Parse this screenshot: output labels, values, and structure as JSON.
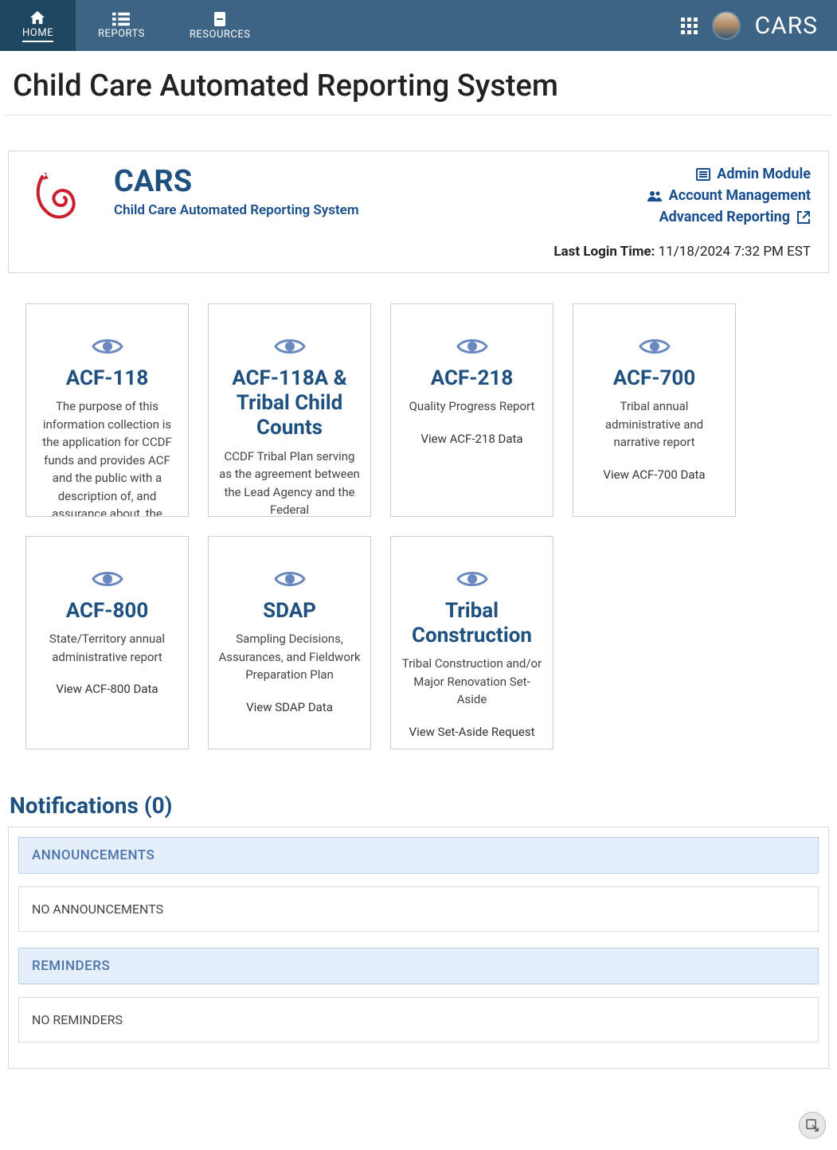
{
  "nav": {
    "items": [
      {
        "label": "HOME",
        "active": true
      },
      {
        "label": "REPORTS",
        "active": false
      },
      {
        "label": "RESOURCES",
        "active": false
      }
    ],
    "brand": "CARS"
  },
  "page_title": "Child Care Automated Reporting System",
  "header": {
    "title": "CARS",
    "subtitle": "Child Care Automated Reporting System",
    "links": {
      "admin": "Admin Module",
      "account": "Account Management",
      "reporting": "Advanced Reporting"
    },
    "last_login_label": "Last Login Time:",
    "last_login_value": "11/18/2024 7:32 PM EST"
  },
  "cards": [
    {
      "title": "ACF-118",
      "desc": "The purpose of this information collection is the application for CCDF funds and provides ACF and the public with a description of, and assurance about, the",
      "link": ""
    },
    {
      "title": "ACF-118A & Tribal Child Counts",
      "desc": "CCDF Tribal Plan serving as the agreement between the Lead Agency and the Federal",
      "link": ""
    },
    {
      "title": "ACF-218",
      "desc": "Quality Progress Report",
      "link": "View ACF-218 Data"
    },
    {
      "title": "ACF-700",
      "desc": "Tribal annual administrative and narrative report",
      "link": "View ACF-700 Data"
    },
    {
      "title": "ACF-800",
      "desc": "State/Territory annual administrative report",
      "link": "View ACF-800 Data"
    },
    {
      "title": "SDAP",
      "desc": "Sampling Decisions, Assurances, and Fieldwork Preparation Plan",
      "link": "View SDAP Data"
    },
    {
      "title": "Tribal Construction",
      "desc": "Tribal Construction and/or Major Renovation Set-Aside",
      "link": "View Set-Aside Request"
    }
  ],
  "notifications": {
    "title": "Notifications (0)",
    "sections": [
      {
        "header": "ANNOUNCEMENTS",
        "body": "NO ANNOUNCEMENTS"
      },
      {
        "header": "REMINDERS",
        "body": "NO REMINDERS"
      }
    ]
  },
  "colors": {
    "navbar_bg": "#3d6484",
    "navbar_active_bg": "#204761",
    "primary_blue": "#1f5180",
    "link_blue": "#1a4f8f",
    "notif_header_bg": "#e4effb",
    "notif_header_border": "#b8cee8",
    "icon_blue": "#6a88c0",
    "border_gray": "#d9d9d9"
  }
}
